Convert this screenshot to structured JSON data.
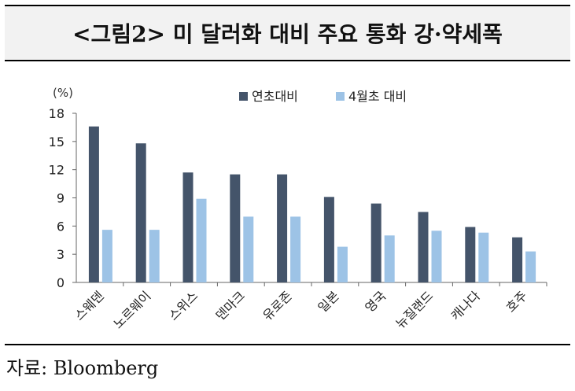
{
  "title": "<그림2> 미 달러화 대비 주요 통화 강·약세폭",
  "source": "자료: Bloomberg",
  "chart_data": {
    "type": "bar",
    "unit": "(%)",
    "categories": [
      "스웨덴",
      "노르웨이",
      "스위스",
      "덴마크",
      "유로존",
      "일본",
      "영국",
      "뉴질랜드",
      "캐나다",
      "호주"
    ],
    "series": [
      {
        "name": "연초대비",
        "color": "#44546a",
        "values": [
          16.6,
          14.8,
          11.7,
          11.5,
          11.5,
          9.1,
          8.4,
          7.5,
          5.9,
          4.8
        ]
      },
      {
        "name": "4월초 대비",
        "color": "#9dc3e6",
        "values": [
          5.6,
          5.6,
          8.9,
          7.0,
          7.0,
          3.8,
          5.0,
          5.5,
          5.3,
          3.3
        ]
      }
    ],
    "yticks": [
      0,
      3,
      6,
      9,
      12,
      15,
      18
    ],
    "ylim": [
      0,
      18
    ],
    "grid": false,
    "legend_position": "top"
  }
}
